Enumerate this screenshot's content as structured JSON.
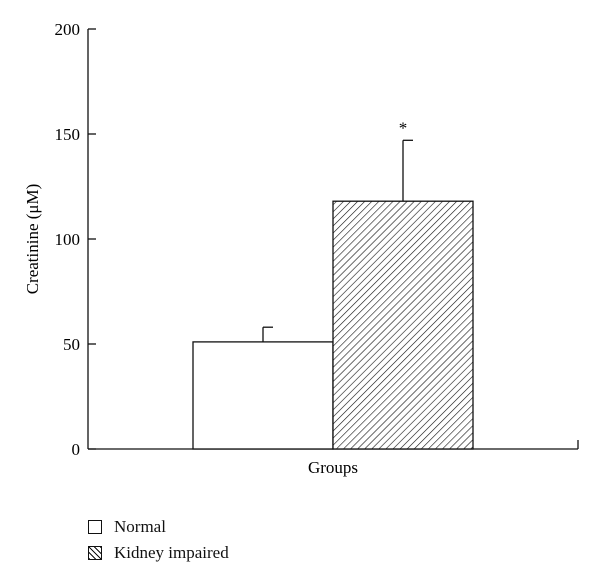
{
  "chart_data": {
    "type": "bar",
    "categories": [
      "Normal",
      "Kidney impaired"
    ],
    "series": [
      {
        "name": "Creatinine",
        "values": [
          51,
          118
        ],
        "error_upper": [
          58,
          147
        ],
        "fills": [
          "#ffffff",
          "hatched"
        ]
      }
    ],
    "xlabel": "Groups",
    "ylabel": "Creatinine (μM)",
    "ylim": [
      0,
      200
    ],
    "yticks": [
      0,
      50,
      100,
      150,
      200
    ],
    "annotations": [
      {
        "category": "Kidney impaired",
        "text": "*"
      }
    ],
    "legend": {
      "placement": "bottom-left",
      "items": [
        {
          "label": "Normal",
          "fill": "white"
        },
        {
          "label": "Kidney impaired",
          "fill": "hatched"
        }
      ]
    },
    "grid": false
  }
}
